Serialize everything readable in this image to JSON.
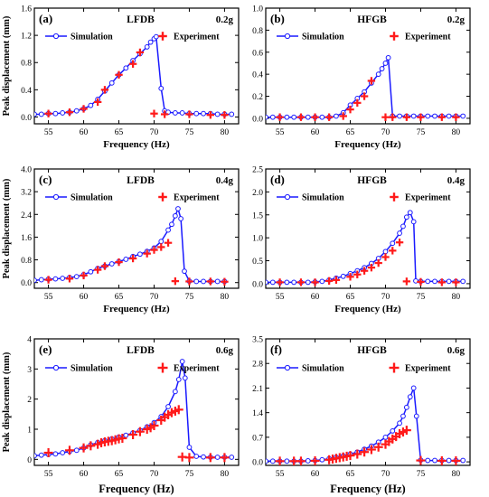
{
  "chart_data": [
    {
      "type": "line",
      "panel_label": "(a)",
      "title": "LFDB",
      "accel": "0.2g",
      "xlabel": "Frequency (Hz)",
      "ylabel": "Peak displacement (mm)",
      "xlim": [
        53,
        82
      ],
      "xticks": [
        55,
        60,
        65,
        70,
        75,
        80
      ],
      "ylim": [
        -0.1,
        1.6
      ],
      "yticks": [
        0.0,
        0.4,
        0.8,
        1.2,
        1.6
      ],
      "series": [
        {
          "name": "Simulation",
          "style": "line-circle",
          "color": "#1a1aff",
          "x": [
            53,
            54,
            55,
            56,
            57,
            58,
            59,
            60,
            61,
            62,
            63,
            64,
            65,
            66,
            67,
            68,
            69,
            69.5,
            70,
            70.3,
            71,
            71.5,
            72,
            73,
            74,
            75,
            76,
            77,
            78,
            79,
            80,
            81
          ],
          "y": [
            0.04,
            0.04,
            0.05,
            0.05,
            0.06,
            0.07,
            0.09,
            0.12,
            0.17,
            0.26,
            0.38,
            0.5,
            0.62,
            0.72,
            0.83,
            0.93,
            1.03,
            1.1,
            1.15,
            1.18,
            0.42,
            0.09,
            0.07,
            0.06,
            0.06,
            0.05,
            0.05,
            0.05,
            0.05,
            0.04,
            0.04,
            0.04
          ]
        },
        {
          "name": "Experiment",
          "style": "plus",
          "color": "#ff1a1a",
          "x": [
            55,
            58,
            60,
            62,
            63,
            65,
            67,
            68,
            70,
            71.5,
            75,
            78,
            80
          ],
          "y": [
            0.05,
            0.07,
            0.12,
            0.22,
            0.4,
            0.62,
            0.78,
            0.95,
            0.05,
            0.04,
            0.04,
            0.03,
            0.03
          ]
        }
      ]
    },
    {
      "type": "line",
      "panel_label": "(b)",
      "title": "HFGB",
      "accel": "0.2g",
      "xlabel": "Frequency (Hz)",
      "ylabel": "",
      "xlim": [
        53,
        82
      ],
      "xticks": [
        55,
        60,
        65,
        70,
        75,
        80
      ],
      "ylim": [
        -0.05,
        1.0
      ],
      "yticks": [
        0.0,
        0.2,
        0.4,
        0.6,
        0.8,
        1.0
      ],
      "series": [
        {
          "name": "Simulation",
          "style": "line-circle",
          "color": "#1a1aff",
          "x": [
            53,
            54,
            55,
            56,
            57,
            58,
            59,
            60,
            61,
            62,
            63,
            64,
            65,
            66,
            67,
            68,
            69,
            69.5,
            70,
            70.4,
            71,
            72,
            73,
            74,
            75,
            76,
            77,
            78,
            79,
            80,
            81
          ],
          "y": [
            0.01,
            0.01,
            0.01,
            0.01,
            0.01,
            0.01,
            0.01,
            0.01,
            0.01,
            0.01,
            0.02,
            0.05,
            0.12,
            0.18,
            0.24,
            0.32,
            0.4,
            0.45,
            0.5,
            0.55,
            0.02,
            0.02,
            0.02,
            0.02,
            0.02,
            0.02,
            0.02,
            0.02,
            0.02,
            0.02,
            0.02
          ]
        },
        {
          "name": "Experiment",
          "style": "plus",
          "color": "#ff1a1a",
          "x": [
            55,
            58,
            60,
            62,
            64,
            65,
            66,
            67,
            68,
            70,
            71,
            73,
            75,
            78,
            80
          ],
          "y": [
            0.01,
            0.01,
            0.01,
            0.01,
            0.02,
            0.08,
            0.14,
            0.2,
            0.34,
            0.01,
            0.01,
            0.01,
            0.01,
            0.01,
            0.01
          ]
        }
      ]
    },
    {
      "type": "line",
      "panel_label": "(c)",
      "title": "LFDB",
      "accel": "0.4g",
      "xlabel": "Frequency (Hz)",
      "ylabel": "Peak displacement (mm)",
      "xlim": [
        53,
        82
      ],
      "xticks": [
        55,
        60,
        65,
        70,
        75,
        80
      ],
      "ylim": [
        -0.2,
        4.0
      ],
      "yticks": [
        0.0,
        0.8,
        1.6,
        2.4,
        3.2,
        4.0
      ],
      "series": [
        {
          "name": "Simulation",
          "style": "line-circle",
          "color": "#1a1aff",
          "x": [
            53,
            54,
            55,
            56,
            57,
            58,
            59,
            60,
            61,
            62,
            63,
            64,
            65,
            66,
            67,
            68,
            69,
            70,
            71,
            72,
            72.5,
            73,
            73.4,
            73.8,
            74.3,
            75,
            76,
            77,
            78,
            79,
            80
          ],
          "y": [
            0.08,
            0.1,
            0.12,
            0.13,
            0.15,
            0.18,
            0.21,
            0.28,
            0.38,
            0.5,
            0.58,
            0.66,
            0.74,
            0.82,
            0.92,
            1.0,
            1.1,
            1.22,
            1.45,
            1.85,
            2.05,
            2.35,
            2.6,
            2.25,
            0.4,
            0.05,
            0.04,
            0.04,
            0.04,
            0.04,
            0.04
          ]
        },
        {
          "name": "Experiment",
          "style": "plus",
          "color": "#ff1a1a",
          "x": [
            55,
            58,
            60,
            62,
            63,
            65,
            67,
            69,
            70,
            71,
            72,
            73,
            75,
            78,
            80
          ],
          "y": [
            0.1,
            0.14,
            0.25,
            0.45,
            0.58,
            0.72,
            0.85,
            1.02,
            1.15,
            1.25,
            1.4,
            0.05,
            0.04,
            0.04,
            0.03
          ]
        }
      ]
    },
    {
      "type": "line",
      "panel_label": "(d)",
      "title": "HFGB",
      "accel": "0.4g",
      "xlabel": "Frequency (Hz)",
      "ylabel": "",
      "xlim": [
        53,
        82
      ],
      "xticks": [
        55,
        60,
        65,
        70,
        75,
        80
      ],
      "ylim": [
        -0.1,
        2.5
      ],
      "yticks": [
        0.0,
        0.5,
        1.0,
        1.5,
        2.0,
        2.5
      ],
      "series": [
        {
          "name": "Simulation",
          "style": "line-circle",
          "color": "#1a1aff",
          "x": [
            53,
            54,
            55,
            56,
            57,
            58,
            59,
            60,
            61,
            62,
            63,
            64,
            65,
            66,
            67,
            68,
            69,
            70,
            71,
            72,
            72.5,
            73,
            73.5,
            74,
            74.3,
            75,
            76,
            77,
            78,
            79,
            80,
            81
          ],
          "y": [
            0.03,
            0.03,
            0.03,
            0.03,
            0.03,
            0.03,
            0.03,
            0.04,
            0.05,
            0.08,
            0.12,
            0.16,
            0.22,
            0.28,
            0.35,
            0.44,
            0.55,
            0.7,
            0.88,
            1.1,
            1.25,
            1.45,
            1.55,
            1.35,
            0.06,
            0.05,
            0.05,
            0.05,
            0.05,
            0.05,
            0.05,
            0.05
          ]
        },
        {
          "name": "Experiment",
          "style": "plus",
          "color": "#ff1a1a",
          "x": [
            55,
            58,
            60,
            62,
            63,
            65,
            66,
            67,
            68,
            69,
            70,
            71,
            72,
            73,
            75,
            78,
            80
          ],
          "y": [
            0.03,
            0.03,
            0.03,
            0.06,
            0.08,
            0.15,
            0.2,
            0.28,
            0.35,
            0.45,
            0.58,
            0.72,
            0.9,
            0.05,
            0.04,
            0.03,
            0.03
          ]
        }
      ]
    },
    {
      "type": "line",
      "panel_label": "(e)",
      "title": "LFDB",
      "accel": "0.6g",
      "xlabel": "Frequency (Hz)",
      "ylabel": "Peak displacement (mm)",
      "xlim": [
        53,
        82
      ],
      "xticks": [
        55,
        60,
        65,
        70,
        75,
        80
      ],
      "ylim": [
        -0.2,
        4.0
      ],
      "yticks": [
        0,
        1,
        2,
        3,
        4
      ],
      "series": [
        {
          "name": "Simulation",
          "style": "line-circle",
          "color": "#1a1aff",
          "x": [
            53,
            54,
            55,
            56,
            57,
            58,
            59,
            60,
            61,
            62,
            63,
            64,
            65,
            66,
            67,
            68,
            69,
            70,
            71,
            72,
            73,
            73.5,
            74,
            74.4,
            75,
            76,
            77,
            78,
            79,
            80,
            81
          ],
          "y": [
            0.12,
            0.14,
            0.16,
            0.18,
            0.22,
            0.26,
            0.3,
            0.38,
            0.48,
            0.56,
            0.62,
            0.68,
            0.74,
            0.8,
            0.88,
            0.96,
            1.08,
            1.22,
            1.42,
            1.75,
            2.25,
            2.65,
            3.25,
            2.7,
            0.4,
            0.1,
            0.08,
            0.07,
            0.07,
            0.07,
            0.07
          ]
        },
        {
          "name": "Experiment",
          "style": "plus",
          "color": "#ff1a1a",
          "x": [
            55,
            58,
            60,
            61,
            62,
            62.5,
            63,
            63.5,
            64,
            64.5,
            65,
            65.5,
            67,
            68,
            69,
            69.5,
            70,
            71,
            71.5,
            72,
            72.5,
            73,
            73.5,
            74,
            75,
            78,
            80
          ],
          "y": [
            0.22,
            0.3,
            0.38,
            0.45,
            0.5,
            0.55,
            0.58,
            0.6,
            0.62,
            0.65,
            0.68,
            0.7,
            0.82,
            0.92,
            1.0,
            1.05,
            1.12,
            1.3,
            1.4,
            1.48,
            1.55,
            1.6,
            1.65,
            0.08,
            0.06,
            0.06,
            0.06
          ]
        }
      ]
    },
    {
      "type": "line",
      "panel_label": "(f)",
      "title": "HFGB",
      "accel": "0.6g",
      "xlabel": "Frequency (Hz)",
      "ylabel": "",
      "xlim": [
        53,
        82
      ],
      "xticks": [
        55,
        60,
        65,
        70,
        75,
        80
      ],
      "ylim": [
        -0.1,
        3.5
      ],
      "yticks": [
        0.0,
        0.7,
        1.4,
        2.1,
        2.8,
        3.5
      ],
      "series": [
        {
          "name": "Simulation",
          "style": "line-circle",
          "color": "#1a1aff",
          "x": [
            53,
            54,
            55,
            56,
            57,
            58,
            59,
            60,
            61,
            62,
            63,
            64,
            65,
            66,
            67,
            68,
            69,
            70,
            71,
            72,
            72.5,
            73,
            73.5,
            74,
            74.4,
            75,
            76,
            77,
            78,
            79,
            80,
            81
          ],
          "y": [
            0.02,
            0.02,
            0.02,
            0.02,
            0.02,
            0.02,
            0.03,
            0.04,
            0.06,
            0.09,
            0.13,
            0.17,
            0.22,
            0.28,
            0.36,
            0.45,
            0.56,
            0.7,
            0.88,
            1.1,
            1.3,
            1.55,
            1.85,
            2.1,
            1.3,
            0.05,
            0.04,
            0.04,
            0.04,
            0.04,
            0.04,
            0.04
          ]
        },
        {
          "name": "Experiment",
          "style": "plus",
          "color": "#ff1a1a",
          "x": [
            55,
            57,
            58,
            60,
            62,
            62.5,
            63,
            63.5,
            64,
            64.5,
            65,
            66,
            67,
            68,
            69,
            70,
            70.5,
            71,
            71.5,
            72,
            72.5,
            73,
            75,
            78,
            80
          ],
          "y": [
            0.02,
            0.02,
            0.02,
            0.03,
            0.06,
            0.08,
            0.1,
            0.12,
            0.14,
            0.16,
            0.18,
            0.22,
            0.28,
            0.35,
            0.42,
            0.5,
            0.58,
            0.65,
            0.72,
            0.8,
            0.85,
            0.9,
            0.04,
            0.03,
            0.03
          ]
        }
      ]
    }
  ]
}
